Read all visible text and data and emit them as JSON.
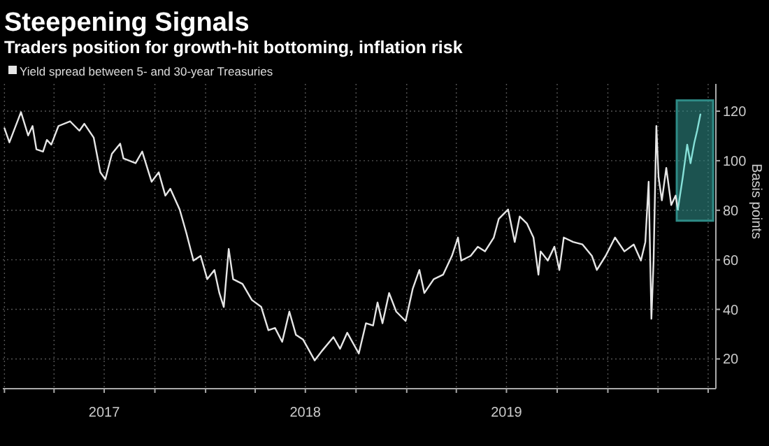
{
  "chart_data": {
    "type": "line",
    "title": "Steepening Signals",
    "subtitle": "Traders position for growth-hit bottoming, inflation risk",
    "ylabel": "Basis points",
    "xlim": [
      "2016-12-29",
      "2020-07-15"
    ],
    "ylim": [
      8,
      131
    ],
    "xticks": [
      {
        "value": "2017-01-01",
        "label": null
      },
      {
        "value": "2017-04-01",
        "label": null
      },
      {
        "value": "2017-07-01",
        "label": "2017"
      },
      {
        "value": "2017-10-01",
        "label": null
      },
      {
        "value": "2018-01-01",
        "label": null
      },
      {
        "value": "2018-04-01",
        "label": null
      },
      {
        "value": "2018-07-01",
        "label": "2018"
      },
      {
        "value": "2018-10-01",
        "label": null
      },
      {
        "value": "2019-01-01",
        "label": null
      },
      {
        "value": "2019-04-01",
        "label": null
      },
      {
        "value": "2019-07-01",
        "label": "2019"
      },
      {
        "value": "2019-10-01",
        "label": null
      },
      {
        "value": "2020-01-01",
        "label": null
      },
      {
        "value": "2020-04-01",
        "label": null
      },
      {
        "value": "2020-07-01",
        "label": null
      }
    ],
    "yticks": [
      20,
      40,
      60,
      80,
      100,
      120
    ],
    "grid": true,
    "legend": "top left",
    "bands": [
      {
        "axis": "x",
        "from": "2020-05-05",
        "to": "2020-07-10",
        "color": "#2e8b86"
      }
    ],
    "series": [
      {
        "name": "Yield spread between 5- and 30-year Treasuries",
        "color": "#e6e6e6",
        "x": [
          "2017-01-01",
          "2017-01-10",
          "2017-01-31",
          "2017-02-13",
          "2017-02-21",
          "2017-02-28",
          "2017-03-12",
          "2017-03-19",
          "2017-03-27",
          "2017-04-09",
          "2017-04-30",
          "2017-05-17",
          "2017-05-26",
          "2017-06-12",
          "2017-06-24",
          "2017-07-03",
          "2017-07-15",
          "2017-07-30",
          "2017-08-05",
          "2017-08-27",
          "2017-09-08",
          "2017-09-25",
          "2017-10-08",
          "2017-10-20",
          "2017-10-29",
          "2017-11-15",
          "2017-11-27",
          "2017-12-10",
          "2017-12-23",
          "2018-01-04",
          "2018-01-17",
          "2018-01-26",
          "2018-02-03",
          "2018-02-12",
          "2018-02-20",
          "2018-03-09",
          "2018-03-26",
          "2018-04-12",
          "2018-04-25",
          "2018-05-07",
          "2018-05-20",
          "2018-06-02",
          "2018-06-14",
          "2018-06-27",
          "2018-07-18",
          "2018-07-31",
          "2018-08-21",
          "2018-09-02",
          "2018-09-15",
          "2018-10-06",
          "2018-10-19",
          "2018-11-01",
          "2018-11-09",
          "2018-11-18",
          "2018-11-30",
          "2018-12-13",
          "2018-12-30",
          "2019-01-12",
          "2019-01-24",
          "2019-02-02",
          "2019-02-19",
          "2019-03-08",
          "2019-03-24",
          "2019-04-04",
          "2019-04-10",
          "2019-04-27",
          "2019-05-10",
          "2019-05-23",
          "2019-06-08",
          "2019-06-17",
          "2019-07-04",
          "2019-07-16",
          "2019-07-25",
          "2019-08-07",
          "2019-08-19",
          "2019-08-28",
          "2019-09-01",
          "2019-09-14",
          "2019-09-26",
          "2019-10-05",
          "2019-10-13",
          "2019-10-30",
          "2019-11-16",
          "2019-12-03",
          "2019-12-12",
          "2019-12-28",
          "2020-01-14",
          "2020-01-31",
          "2020-02-17",
          "2020-03-01",
          "2020-03-09",
          "2020-03-15",
          "2020-03-20",
          "2020-03-24",
          "2020-03-29",
          "2020-04-02",
          "2020-04-08",
          "2020-04-16",
          "2020-04-25",
          "2020-05-03",
          "2020-05-07"
        ],
        "values": [
          113.1,
          107.4,
          119.6,
          110.2,
          114,
          104.6,
          103.7,
          108.4,
          106.5,
          114,
          115.9,
          112.1,
          114.9,
          109.3,
          95.3,
          92.5,
          102.8,
          106.9,
          100.9,
          99,
          103.7,
          91.5,
          95.3,
          85.9,
          88.7,
          80.3,
          70.9,
          59.7,
          61.6,
          52.2,
          55.9,
          46.6,
          41,
          64.4,
          52.2,
          50.3,
          43.8,
          41,
          31.6,
          32.5,
          26.9,
          39.1,
          29.7,
          27.8,
          19.4,
          23.2,
          28.8,
          24.1,
          30.6,
          22.2,
          34.4,
          33.5,
          42.8,
          34.4,
          46.6,
          39.1,
          35.3,
          48.4,
          55.9,
          46.6,
          52.2,
          54,
          61.6,
          69,
          59.7,
          61.6,
          65.3,
          63.4,
          69,
          76.5,
          80.3,
          67.2,
          77.5,
          74.7,
          69,
          54,
          63.4,
          59.7,
          65.3,
          55.9,
          69,
          67.2,
          66.2,
          61.6,
          55.9,
          61.6,
          69,
          63.4,
          66.2,
          59.7,
          67.2,
          91.5,
          36.2,
          59.7,
          114,
          93.4,
          84,
          97.1,
          82.1,
          85.9,
          80.3
        ]
      },
      {
        "color": "#86e0d8",
        "x": [
          "2020-05-07",
          "2020-05-16",
          "2020-05-24",
          "2020-05-30",
          "2020-06-06",
          "2020-06-11",
          "2020-06-17"
        ],
        "values": [
          80.3,
          93.4,
          106.5,
          99,
          107.4,
          112.1,
          118.7
        ]
      }
    ]
  }
}
